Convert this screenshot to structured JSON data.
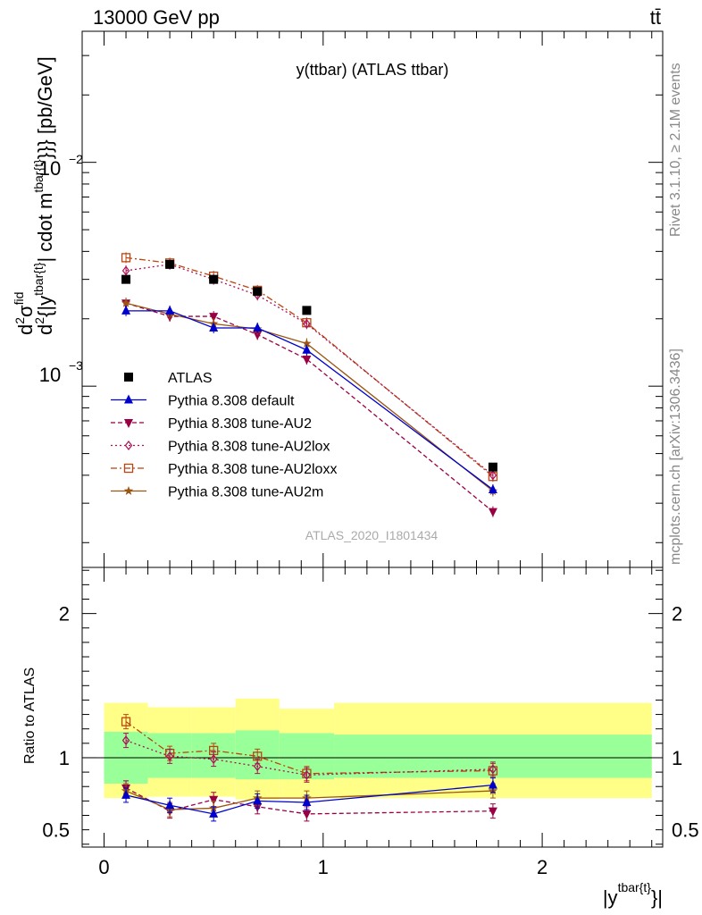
{
  "header": {
    "energy_label": "13000 GeV pp",
    "process_label": "tt̄",
    "plot_title": "y(ttbar) (ATLAS ttbar)",
    "rivet_label": "Rivet 3.1.10, ≥ 2.1M events",
    "mcplots_label": "mcplots.cern.ch [arXiv:1306.3436]",
    "analysis_label": "ATLAS_2020_I1801434"
  },
  "colors": {
    "data": "#000000",
    "default": "#0000cc",
    "au2": "#990044",
    "au2lox": "#aa1155",
    "au2loxx": "#bb4411",
    "au2m": "#995511",
    "band_inner": "#99ff99",
    "band_outer": "#ffff88"
  },
  "chart_data": [
    {
      "type": "line",
      "name": "main",
      "xlabel": "|y^{tbar{t}}|",
      "ylabel": "d²σ^{fid} / d²{|y^{tbar{t}}| cdot m^{tbar{t}}}} [pb/GeV]",
      "ylabel_parts": [
        "d",
        "2",
        "σ",
        "fid",
        "d",
        "2",
        "{|y",
        "tbar{t}",
        "| cdot m",
        "tbar{t}",
        "}}} [pb/GeV]"
      ],
      "y_scale": "log",
      "xlim": [
        -0.1,
        2.55
      ],
      "ylim": [
        0.000155,
        0.0385
      ],
      "y_tick_labels": [
        {
          "value": 0.01,
          "base": "10",
          "exp": "−2"
        },
        {
          "value": 0.001,
          "base": "10",
          "exp": "−3"
        }
      ],
      "x_edges": [
        0,
        0.2,
        0.4,
        0.6,
        0.8,
        1.05,
        2.5
      ],
      "series": [
        {
          "key": "data",
          "name": "ATLAS",
          "x": [
            0.1,
            0.3,
            0.5,
            0.7,
            0.925,
            1.775
          ],
          "y": [
            0.003,
            0.0035,
            0.003,
            0.00265,
            0.00218,
            0.000435
          ],
          "marker": "square",
          "line": "none"
        },
        {
          "key": "default",
          "name": "Pythia 8.308 default",
          "x": [
            0.1,
            0.3,
            0.5,
            0.7,
            0.925,
            1.775
          ],
          "y": [
            0.00217,
            0.00217,
            0.00182,
            0.00182,
            0.00145,
            0.000345
          ],
          "marker": "triangle-up",
          "line": "solid"
        },
        {
          "key": "au2",
          "name": "Pythia 8.308 tune-AU2",
          "x": [
            0.1,
            0.3,
            0.5,
            0.7,
            0.925,
            1.775
          ],
          "y": [
            0.00235,
            0.00205,
            0.00205,
            0.0017,
            0.00132,
            0.000275
          ],
          "marker": "triangle-down",
          "line": "dashed"
        },
        {
          "key": "au2lox",
          "name": "Pythia 8.308 tune-AU2lox",
          "x": [
            0.1,
            0.3,
            0.5,
            0.7,
            0.925,
            1.775
          ],
          "y": [
            0.00328,
            0.0035,
            0.003,
            0.00255,
            0.0019,
            0.0004
          ],
          "marker": "diamond-open",
          "line": "dotted"
        },
        {
          "key": "au2loxx",
          "name": "Pythia 8.308 tune-AU2loxx",
          "x": [
            0.1,
            0.3,
            0.5,
            0.7,
            0.925,
            1.775
          ],
          "y": [
            0.00375,
            0.00355,
            0.0031,
            0.00268,
            0.00192,
            0.000395
          ],
          "marker": "square-open",
          "line": "dashdot"
        },
        {
          "key": "au2m",
          "name": "Pythia 8.308 tune-AU2m",
          "x": [
            0.1,
            0.3,
            0.5,
            0.7,
            0.925,
            1.775
          ],
          "y": [
            0.00235,
            0.0021,
            0.0019,
            0.0018,
            0.00155,
            0.00034
          ],
          "marker": "star",
          "line": "solid"
        }
      ],
      "legend_position": "lower-left"
    },
    {
      "type": "line",
      "name": "ratio",
      "ylabel": "Ratio to ATLAS",
      "xlabel": "|y^{tbar{t}}|",
      "xlim": [
        -0.1,
        2.55
      ],
      "ylim": [
        0.38,
        2.32
      ],
      "x_ticks": [
        0,
        1,
        2
      ],
      "y_ticks": [
        0.5,
        1,
        2
      ],
      "reference_line": 1,
      "band_inner": [
        [
          0.82,
          1.18
        ],
        [
          0.86,
          1.17
        ],
        [
          0.86,
          1.17
        ],
        [
          0.85,
          1.19
        ],
        [
          0.85,
          1.17
        ],
        [
          0.86,
          1.16
        ]
      ],
      "band_outer": [
        [
          0.72,
          1.38
        ],
        [
          0.73,
          1.35
        ],
        [
          0.73,
          1.35
        ],
        [
          0.71,
          1.41
        ],
        [
          0.72,
          1.34
        ],
        [
          0.72,
          1.38
        ]
      ],
      "series": [
        {
          "key": "default",
          "x": [
            0.1,
            0.3,
            0.5,
            0.7,
            0.925,
            1.775
          ],
          "y": [
            0.74,
            0.67,
            0.61,
            0.7,
            0.69,
            0.81
          ]
        },
        {
          "key": "au2",
          "x": [
            0.1,
            0.3,
            0.5,
            0.7,
            0.925,
            1.775
          ],
          "y": [
            0.79,
            0.63,
            0.71,
            0.66,
            0.61,
            0.63
          ]
        },
        {
          "key": "au2lox",
          "x": [
            0.1,
            0.3,
            0.5,
            0.7,
            0.925,
            1.775
          ],
          "y": [
            1.12,
            1.01,
            0.99,
            0.94,
            0.88,
            0.92
          ]
        },
        {
          "key": "au2loxx",
          "x": [
            0.1,
            0.3,
            0.5,
            0.7,
            0.925,
            1.775
          ],
          "y": [
            1.25,
            1.03,
            1.05,
            1.01,
            0.89,
            0.91
          ]
        },
        {
          "key": "au2m",
          "x": [
            0.1,
            0.3,
            0.5,
            0.7,
            0.925,
            1.775
          ],
          "y": [
            0.77,
            0.64,
            0.65,
            0.72,
            0.72,
            0.77
          ]
        }
      ]
    }
  ]
}
